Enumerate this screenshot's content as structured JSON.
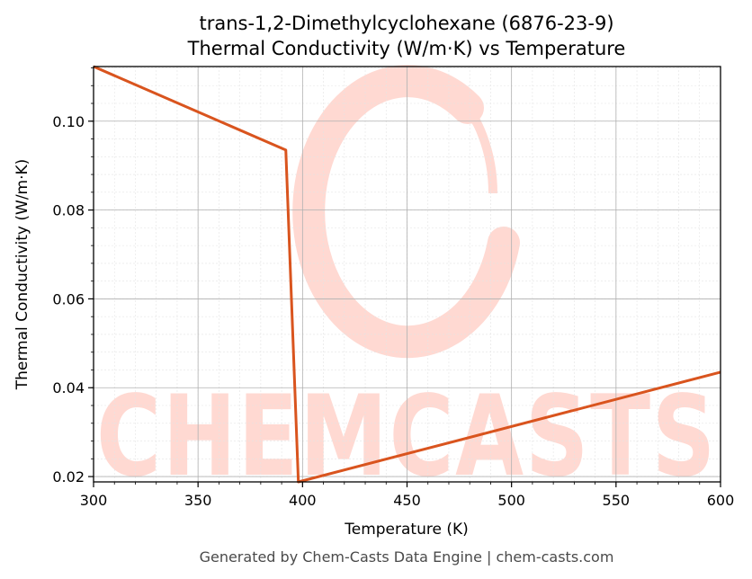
{
  "chart_data": {
    "type": "line",
    "title": "trans-1,2-Dimethylcyclohexane (6876-23-9)",
    "subtitle": "Thermal Conductivity (W/m·K) vs Temperature",
    "xlabel": "Temperature (K)",
    "ylabel": "Thermal Conductivity (W/m·K)",
    "xlim": [
      300,
      600
    ],
    "ylim": [
      0.0188,
      0.1123
    ],
    "xticks": [
      300,
      350,
      400,
      450,
      500,
      550,
      600
    ],
    "yticks": [
      0.02,
      0.04,
      0.06,
      0.08,
      0.1
    ],
    "xtick_labels": [
      "300",
      "350",
      "400",
      "450",
      "500",
      "550",
      "600"
    ],
    "ytick_labels": [
      "0.02",
      "0.04",
      "0.06",
      "0.08",
      "0.10"
    ],
    "grid": true,
    "series": [
      {
        "color": "#d9541e",
        "x": [
          300,
          392,
          398,
          600
        ],
        "y": [
          0.1123,
          0.0935,
          0.0188,
          0.0435
        ]
      }
    ]
  },
  "watermark": {
    "text": "CHEMCASTS",
    "color": "#ffd9d2"
  },
  "footer": "Generated by Chem-Casts Data Engine | chem-casts.com"
}
